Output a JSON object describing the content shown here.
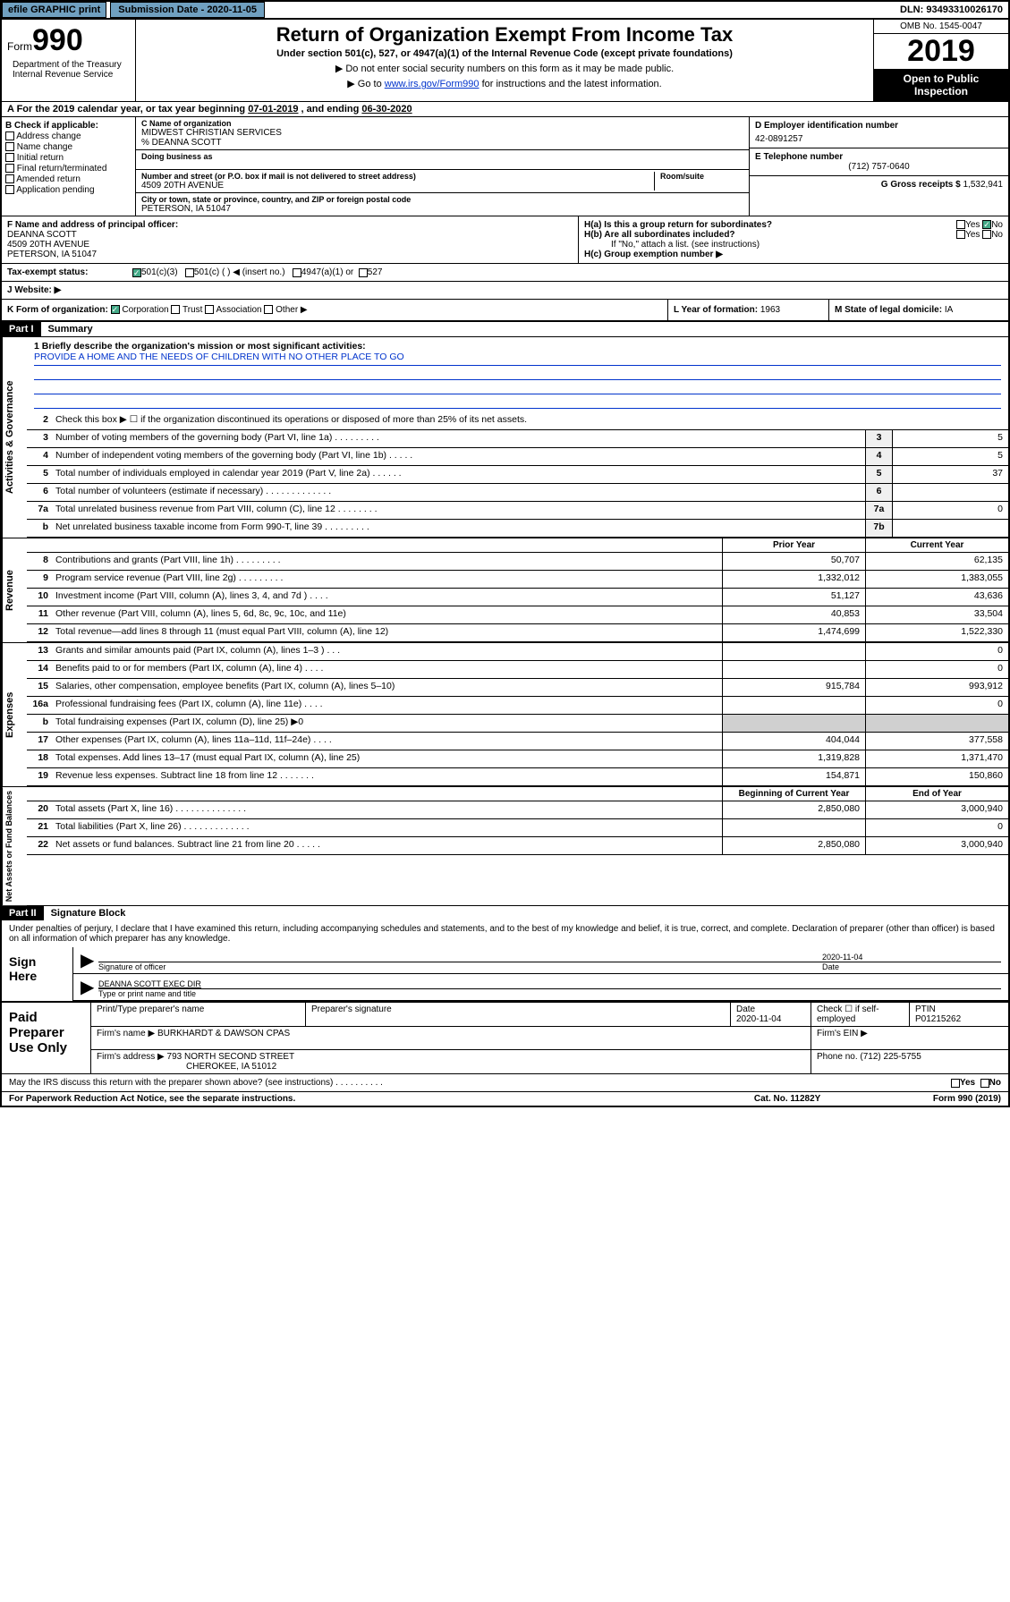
{
  "top": {
    "efile": "efile GRAPHIC print",
    "sub_date_label": "Submission Date - 2020-11-05",
    "dln": "DLN: 93493310026170"
  },
  "header": {
    "form_prefix": "Form",
    "form_num": "990",
    "title": "Return of Organization Exempt From Income Tax",
    "subtitle": "Under section 501(c), 527, or 4947(a)(1) of the Internal Revenue Code (except private foundations)",
    "note1": "▶ Do not enter social security numbers on this form as it may be made public.",
    "note2_pre": "▶ Go to ",
    "note2_link": "www.irs.gov/Form990",
    "note2_post": " for instructions and the latest information.",
    "dept": "Department of the Treasury\nInternal Revenue Service",
    "omb": "OMB No. 1545-0047",
    "year": "2019",
    "open": "Open to Public Inspection"
  },
  "section_a": {
    "text_pre": "A For the 2019 calendar year, or tax year beginning ",
    "begin": "07-01-2019",
    "mid": " , and ending ",
    "end": "06-30-2020"
  },
  "col_b": {
    "header": "B Check if applicable:",
    "items": [
      "Address change",
      "Name change",
      "Initial return",
      "Final return/terminated",
      "Amended return",
      "Application pending"
    ]
  },
  "col_c": {
    "name_label": "C Name of organization",
    "name": "MIDWEST CHRISTIAN SERVICES",
    "care_of": "% DEANNA SCOTT",
    "dba_label": "Doing business as",
    "dba": "",
    "addr_label": "Number and street (or P.O. box if mail is not delivered to street address)",
    "room_label": "Room/suite",
    "addr": "4509 20TH AVENUE",
    "city_label": "City or town, state or province, country, and ZIP or foreign postal code",
    "city": "PETERSON, IA  51047"
  },
  "col_d": {
    "label": "D Employer identification number",
    "val": "42-0891257"
  },
  "col_e": {
    "label": "E Telephone number",
    "val": "(712) 757-0640"
  },
  "col_g": {
    "label": "G Gross receipts $",
    "val": "1,532,941"
  },
  "officer": {
    "label": "F Name and address of principal officer:",
    "name": "DEANNA SCOTT",
    "addr1": "4509 20TH AVENUE",
    "addr2": "PETERSON, IA  51047"
  },
  "h": {
    "a_label": "H(a)  Is this a group return for subordinates?",
    "a_yes": "Yes",
    "a_no": "No",
    "b_label": "H(b)  Are all subordinates included?",
    "b_yes": "Yes",
    "b_no": "No",
    "b_note": "If \"No,\" attach a list. (see instructions)",
    "c_label": "H(c)  Group exemption number ▶"
  },
  "tax": {
    "label": "Tax-exempt status:",
    "o1": "501(c)(3)",
    "o2": "501(c) (   ) ◀ (insert no.)",
    "o3": "4947(a)(1) or",
    "o4": "527"
  },
  "website": {
    "label": "J   Website: ▶"
  },
  "k": {
    "label": "K Form of organization:",
    "corp": "Corporation",
    "trust": "Trust",
    "assoc": "Association",
    "other": "Other ▶",
    "l_label": "L Year of formation:",
    "l_val": "1963",
    "m_label": "M State of legal domicile:",
    "m_val": "IA"
  },
  "part1": {
    "tag": "Part I",
    "title": "Summary"
  },
  "mission": {
    "label": "1  Briefly describe the organization's mission or most significant activities:",
    "text": "PROVIDE A HOME AND THE NEEDS OF CHILDREN WITH NO OTHER PLACE TO GO"
  },
  "gov_lines": [
    {
      "n": "2",
      "t": "Check this box ▶ ☐  if the organization discontinued its operations or disposed of more than 25% of its net assets."
    },
    {
      "n": "3",
      "t": "Number of voting members of the governing body (Part VI, line 1a)   .    .    .    .    .    .    .    .    .",
      "box": "3",
      "v": "5"
    },
    {
      "n": "4",
      "t": "Number of independent voting members of the governing body (Part VI, line 1b)   .    .    .    .    .",
      "box": "4",
      "v": "5"
    },
    {
      "n": "5",
      "t": "Total number of individuals employed in calendar year 2019 (Part V, line 2a)   .    .    .    .    .    .",
      "box": "5",
      "v": "37"
    },
    {
      "n": "6",
      "t": "Total number of volunteers (estimate if necessary)   .    .    .    .    .    .    .    .    .    .    .    .    .",
      "box": "6",
      "v": ""
    },
    {
      "n": "7a",
      "t": "Total unrelated business revenue from Part VIII, column (C), line 12   .    .    .    .    .    .    .    .",
      "box": "7a",
      "v": "0"
    },
    {
      "n": "b",
      "t": "Net unrelated business taxable income from Form 990-T, line 39   .    .    .    .    .    .    .    .    .",
      "box": "7b",
      "v": ""
    }
  ],
  "rev_header": {
    "prior": "Prior Year",
    "current": "Current Year"
  },
  "rev_lines": [
    {
      "n": "8",
      "t": "Contributions and grants (Part VIII, line 1h)   .    .    .    .    .    .    .    .    .",
      "p": "50,707",
      "c": "62,135"
    },
    {
      "n": "9",
      "t": "Program service revenue (Part VIII, line 2g)   .    .    .    .    .    .    .    .    .",
      "p": "1,332,012",
      "c": "1,383,055"
    },
    {
      "n": "10",
      "t": "Investment income (Part VIII, column (A), lines 3, 4, and 7d )   .    .    .    .",
      "p": "51,127",
      "c": "43,636"
    },
    {
      "n": "11",
      "t": "Other revenue (Part VIII, column (A), lines 5, 6d, 8c, 9c, 10c, and 11e)",
      "p": "40,853",
      "c": "33,504"
    },
    {
      "n": "12",
      "t": "Total revenue—add lines 8 through 11 (must equal Part VIII, column (A), line 12)",
      "p": "1,474,699",
      "c": "1,522,330"
    }
  ],
  "exp_lines": [
    {
      "n": "13",
      "t": "Grants and similar amounts paid (Part IX, column (A), lines 1–3 )   .    .    .",
      "p": "",
      "c": "0"
    },
    {
      "n": "14",
      "t": "Benefits paid to or for members (Part IX, column (A), line 4)   .    .    .    .",
      "p": "",
      "c": "0"
    },
    {
      "n": "15",
      "t": "Salaries, other compensation, employee benefits (Part IX, column (A), lines 5–10)",
      "p": "915,784",
      "c": "993,912"
    },
    {
      "n": "16a",
      "t": "Professional fundraising fees (Part IX, column (A), line 11e)   .    .    .    .",
      "p": "",
      "c": "0"
    },
    {
      "n": "b",
      "t": "Total fundraising expenses (Part IX, column (D), line 25) ▶0",
      "p": "gray",
      "c": "gray"
    },
    {
      "n": "17",
      "t": "Other expenses (Part IX, column (A), lines 11a–11d, 11f–24e)   .    .    .    .",
      "p": "404,044",
      "c": "377,558"
    },
    {
      "n": "18",
      "t": "Total expenses. Add lines 13–17 (must equal Part IX, column (A), line 25)",
      "p": "1,319,828",
      "c": "1,371,470"
    },
    {
      "n": "19",
      "t": "Revenue less expenses. Subtract line 18 from line 12   .    .    .    .    .    .    .",
      "p": "154,871",
      "c": "150,860"
    }
  ],
  "net_header": {
    "begin": "Beginning of Current Year",
    "end": "End of Year"
  },
  "net_lines": [
    {
      "n": "20",
      "t": "Total assets (Part X, line 16)   .    .    .    .    .    .    .    .    .    .    .    .    .    .",
      "p": "2,850,080",
      "c": "3,000,940"
    },
    {
      "n": "21",
      "t": "Total liabilities (Part X, line 26)   .    .    .    .    .    .    .    .    .    .    .    .    .",
      "p": "",
      "c": "0"
    },
    {
      "n": "22",
      "t": "Net assets or fund balances. Subtract line 21 from line 20   .    .    .    .    .",
      "p": "2,850,080",
      "c": "3,000,940"
    }
  ],
  "part2": {
    "tag": "Part II",
    "title": "Signature Block"
  },
  "sig": {
    "decl": "Under penalties of perjury, I declare that I have examined this return, including accompanying schedules and statements, and to the best of my knowledge and belief, it is true, correct, and complete. Declaration of preparer (other than officer) is based on all information of which preparer has any knowledge.",
    "here": "Sign Here",
    "sig_label": "Signature of officer",
    "date": "2020-11-04",
    "date_label": "Date",
    "name": "DEANNA SCOTT EXEC DIR",
    "name_label": "Type or print name and title"
  },
  "paid": {
    "title": "Paid Preparer Use Only",
    "h1": "Print/Type preparer's name",
    "h2": "Preparer's signature",
    "h3": "Date",
    "h4": "Check ☐ if self-employed",
    "h5": "PTIN",
    "date": "2020-11-04",
    "ptin": "P01215262",
    "firm_label": "Firm's name    ▶",
    "firm": "BURKHARDT & DAWSON CPAS",
    "ein_label": "Firm's EIN ▶",
    "addr_label": "Firm's address ▶",
    "addr1": "793 NORTH SECOND STREET",
    "addr2": "CHEROKEE, IA  51012",
    "phone_label": "Phone no.",
    "phone": "(712) 225-5755"
  },
  "discuss": {
    "text": "May the IRS discuss this return with the preparer shown above? (see instructions)   .    .    .    .    .    .    .    .    .    .",
    "yes": "Yes",
    "no": "No"
  },
  "footer": {
    "left": "For Paperwork Reduction Act Notice, see the separate instructions.",
    "mid": "Cat. No. 11282Y",
    "right": "Form 990 (2019)"
  },
  "side_labels": {
    "gov": "Activities & Governance",
    "rev": "Revenue",
    "exp": "Expenses",
    "net": "Net Assets or Fund Balances"
  }
}
